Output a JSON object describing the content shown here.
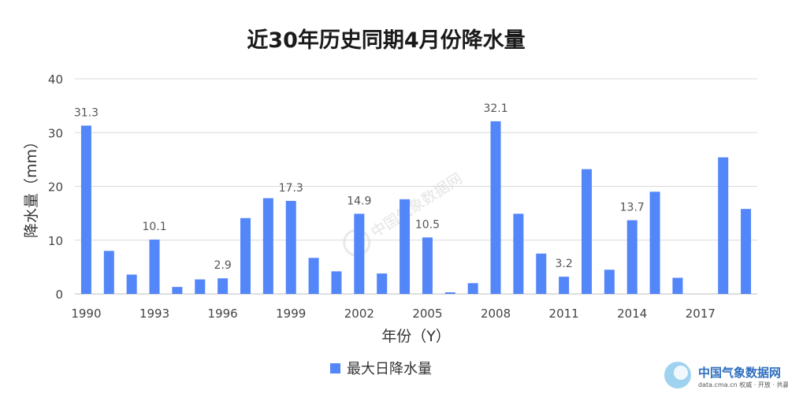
{
  "chart_data": {
    "type": "bar",
    "title": "近30年历史同期4月份降水量",
    "xlabel": "年份（Y）",
    "ylabel": "降水量（mm）",
    "ylim": [
      0,
      40
    ],
    "yticks": [
      0,
      10,
      20,
      30,
      40
    ],
    "grid": true,
    "legend_position": "bottom-center",
    "bar_color": "#5386f8",
    "categories": [
      1990,
      1991,
      1992,
      1993,
      1994,
      1995,
      1996,
      1997,
      1998,
      1999,
      2000,
      2001,
      2002,
      2003,
      2004,
      2005,
      2006,
      2007,
      2008,
      2009,
      2010,
      2011,
      2012,
      2013,
      2014,
      2015,
      2016,
      2017,
      2018,
      2019
    ],
    "xtick_labels": [
      "1990",
      "1993",
      "1996",
      "1999",
      "2002",
      "2005",
      "2008",
      "2011",
      "2014",
      "2017"
    ],
    "series": [
      {
        "name": "最大日降水量",
        "values": [
          31.3,
          8.0,
          3.6,
          10.1,
          1.3,
          2.7,
          2.9,
          14.1,
          17.8,
          17.3,
          6.7,
          4.2,
          14.9,
          3.8,
          17.6,
          10.5,
          0.3,
          2.0,
          32.1,
          14.9,
          7.5,
          3.2,
          23.2,
          4.5,
          13.7,
          19.0,
          3.0,
          0.0,
          25.4,
          15.8
        ]
      }
    ],
    "data_labels": [
      {
        "category": 1990,
        "text": "31.3"
      },
      {
        "category": 1993,
        "text": "10.1"
      },
      {
        "category": 1996,
        "text": "2.9"
      },
      {
        "category": 1999,
        "text": "17.3"
      },
      {
        "category": 2002,
        "text": "14.9"
      },
      {
        "category": 2005,
        "text": "10.5"
      },
      {
        "category": 2008,
        "text": "32.1"
      },
      {
        "category": 2011,
        "text": "3.2"
      },
      {
        "category": 2014,
        "text": "13.7"
      }
    ]
  },
  "watermark": {
    "logo_text": "中国气象数据网",
    "url_text": "data.cma.cn 权威 · 开放 · 共赢",
    "center_text": "中国气象数据网"
  }
}
